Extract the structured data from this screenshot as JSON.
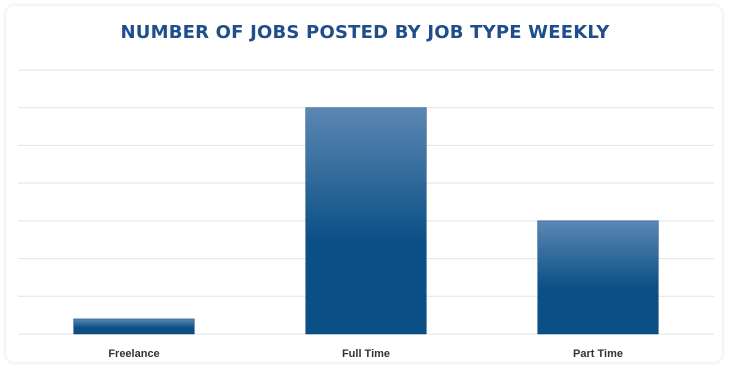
{
  "chart_data": {
    "type": "bar",
    "title": "NUMBER OF JOBS POSTED BY JOB TYPE WEEKLY",
    "categories": [
      "Freelance",
      "Full Time",
      "Part Time"
    ],
    "values": [
      4,
      60,
      30
    ],
    "ylim": [
      0,
      70
    ],
    "grid": true,
    "gridlines": [
      10,
      20,
      30,
      40,
      50,
      60,
      70
    ],
    "bar_color_top": "#5b87b3",
    "bar_color_bottom": "#0a4f85",
    "title_color": "#1f4e8c",
    "grid_color": "#e3e3e3"
  }
}
